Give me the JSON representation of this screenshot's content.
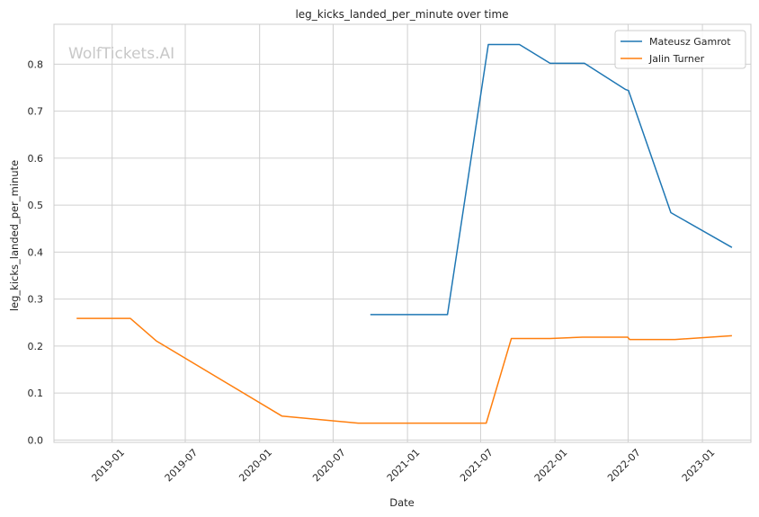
{
  "chart_data": {
    "type": "line",
    "title": "leg_kicks_landed_per_minute over time",
    "xlabel": "Date",
    "ylabel": "leg_kicks_landed_per_minute",
    "watermark": "WolfTickets.AI",
    "x_ticks": [
      "2019-01",
      "2019-07",
      "2020-01",
      "2020-07",
      "2021-01",
      "2021-07",
      "2022-01",
      "2022-07",
      "2023-01"
    ],
    "y_ticks": [
      0.0,
      0.1,
      0.2,
      0.3,
      0.4,
      0.5,
      0.6,
      0.7,
      0.8
    ],
    "y_tick_labels": [
      "0.0",
      "0.1",
      "0.2",
      "0.3",
      "0.4",
      "0.5",
      "0.6",
      "0.7",
      "0.8"
    ],
    "xlim": [
      "2018-08-10",
      "2023-05-01"
    ],
    "ylim": [
      -0.005,
      0.885
    ],
    "grid": true,
    "legend_position": "top-right",
    "series": [
      {
        "name": "Mateusz Gamrot",
        "color": "#1f77b4",
        "points": [
          {
            "x": "2020-10-01",
            "y": 0.267
          },
          {
            "x": "2021-04-10",
            "y": 0.267
          },
          {
            "x": "2021-07-20",
            "y": 0.842
          },
          {
            "x": "2021-10-05",
            "y": 0.842
          },
          {
            "x": "2021-12-20",
            "y": 0.802
          },
          {
            "x": "2022-03-15",
            "y": 0.802
          },
          {
            "x": "2022-06-25",
            "y": 0.746
          },
          {
            "x": "2022-07-02",
            "y": 0.744
          },
          {
            "x": "2022-10-15",
            "y": 0.484
          },
          {
            "x": "2023-03-15",
            "y": 0.41
          }
        ]
      },
      {
        "name": "Jalin Turner",
        "color": "#ff7f0e",
        "points": [
          {
            "x": "2018-10-05",
            "y": 0.259
          },
          {
            "x": "2019-02-15",
            "y": 0.259
          },
          {
            "x": "2019-04-20",
            "y": 0.211
          },
          {
            "x": "2020-02-25",
            "y": 0.051
          },
          {
            "x": "2020-09-01",
            "y": 0.036
          },
          {
            "x": "2021-03-15",
            "y": 0.036
          },
          {
            "x": "2021-07-15",
            "y": 0.036
          },
          {
            "x": "2021-09-15",
            "y": 0.216
          },
          {
            "x": "2021-12-20",
            "y": 0.216
          },
          {
            "x": "2022-03-10",
            "y": 0.219
          },
          {
            "x": "2022-06-30",
            "y": 0.219
          },
          {
            "x": "2022-07-05",
            "y": 0.214
          },
          {
            "x": "2022-10-25",
            "y": 0.214
          },
          {
            "x": "2023-03-15",
            "y": 0.222
          }
        ]
      }
    ]
  }
}
